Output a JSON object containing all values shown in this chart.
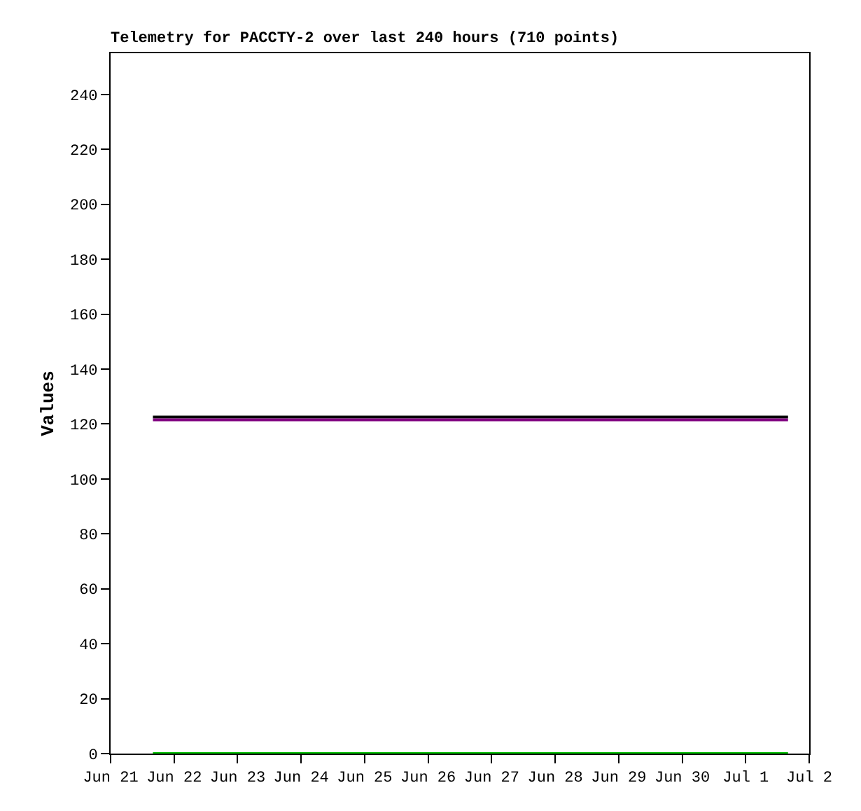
{
  "chart_data": {
    "type": "line",
    "title": "Telemetry for PACCTY-2 over last 240 hours (710 points)",
    "ylabel": "Values",
    "x": [
      "--06-21T16:00",
      "--07-01T16:00"
    ],
    "series": [
      {
        "color": "#000000",
        "values": [
          122.5,
          122.5
        ]
      },
      {
        "color": "#800080",
        "values": [
          121.5,
          121.5
        ]
      },
      {
        "color": "#00c000",
        "values": [
          0,
          0
        ]
      }
    ],
    "xlim": [
      "--06-21",
      "--07-02"
    ],
    "xticks": [
      {
        "value": "--06-21",
        "label": "Jun 21"
      },
      {
        "value": "--06-22",
        "label": "Jun 22"
      },
      {
        "value": "--06-23",
        "label": "Jun 23"
      },
      {
        "value": "--06-24",
        "label": "Jun 24"
      },
      {
        "value": "--06-25",
        "label": "Jun 25"
      },
      {
        "value": "--06-26",
        "label": "Jun 26"
      },
      {
        "value": "--06-27",
        "label": "Jun 27"
      },
      {
        "value": "--06-28",
        "label": "Jun 28"
      },
      {
        "value": "--06-29",
        "label": "Jun 29"
      },
      {
        "value": "--06-30",
        "label": "Jun 30"
      },
      {
        "value": "--07-01",
        "label": "Jul 1"
      },
      {
        "value": "--07-02",
        "label": "Jul 2"
      }
    ],
    "ylim": [
      0,
      255
    ],
    "yticks": [
      0,
      20,
      40,
      60,
      80,
      100,
      120,
      140,
      160,
      180,
      200,
      220,
      240
    ],
    "marker": "none",
    "line_style": "solid"
  }
}
